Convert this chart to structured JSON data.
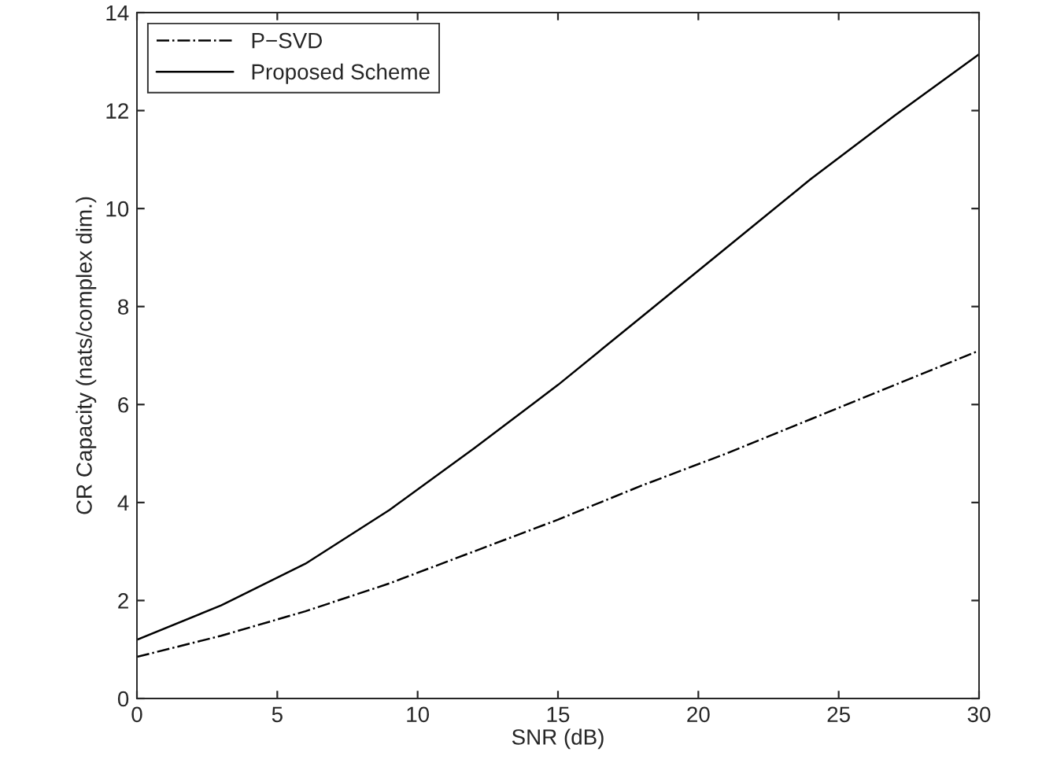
{
  "chart_data": {
    "type": "line",
    "xlabel": "SNR (dB)",
    "ylabel": "CR Capacity (nats/complex dim.)",
    "x": [
      0,
      3,
      6,
      9,
      12,
      15,
      18,
      21,
      24,
      27,
      30
    ],
    "series": [
      {
        "name": "P−SVD",
        "color": "#000000",
        "line_style": "dashdot",
        "values": [
          0.85,
          1.28,
          1.78,
          2.35,
          3.0,
          3.65,
          4.35,
          5.0,
          5.7,
          6.4,
          7.1
        ]
      },
      {
        "name": "Proposed Scheme",
        "color": "#000000",
        "line_style": "solid",
        "values": [
          1.2,
          1.9,
          2.75,
          3.85,
          5.1,
          6.4,
          7.8,
          9.2,
          10.6,
          11.9,
          13.15
        ]
      }
    ],
    "xlim": [
      0,
      30
    ],
    "xticks": [
      0,
      5,
      10,
      15,
      20,
      25,
      30
    ],
    "ylim": [
      0,
      14
    ],
    "yticks": [
      0,
      2,
      4,
      6,
      8,
      10,
      12,
      14
    ],
    "grid": false,
    "legend": "top left",
    "marker": "none"
  }
}
